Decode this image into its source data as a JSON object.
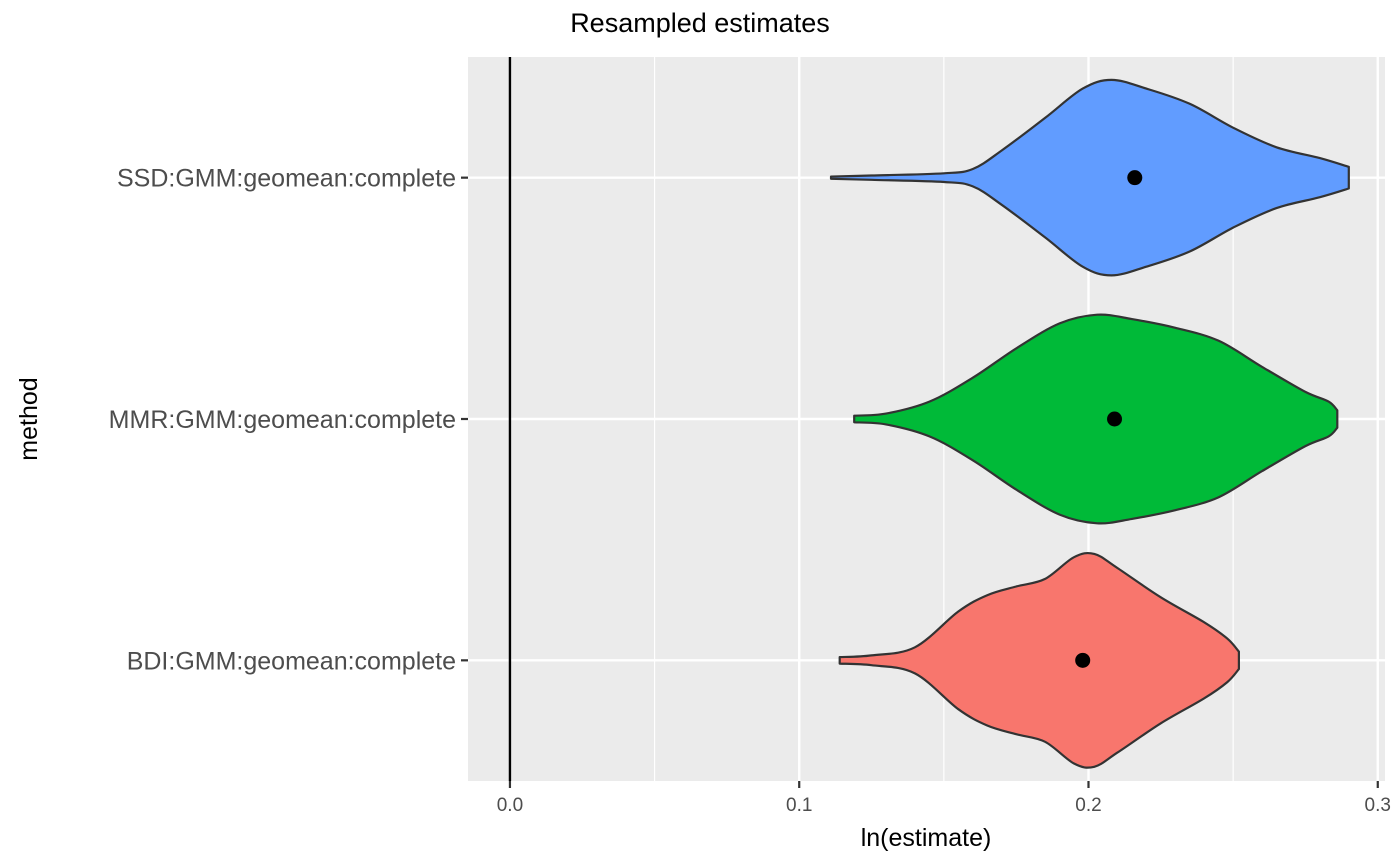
{
  "chart_data": {
    "type": "violin",
    "title": "Resampled estimates",
    "xlabel": "ln(estimate)",
    "ylabel": "method",
    "xlim": [
      -0.0145,
      0.3025
    ],
    "x_ticks": [
      0.0,
      0.1,
      0.2,
      0.3
    ],
    "x_tick_labels": [
      "0.0",
      "0.1",
      "0.2",
      "0.3"
    ],
    "reference_line_x": 0.0,
    "grid": true,
    "background": "#ebebeb",
    "categories": [
      "BDI:GMM:geomean:complete",
      "MMR:GMM:geomean:complete",
      "SSD:GMM:geomean:complete"
    ],
    "series": [
      {
        "category": "BDI:GMM:geomean:complete",
        "color": "#f8766d",
        "point_estimate": 0.198,
        "density": [
          [
            0.114,
            0.03
          ],
          [
            0.125,
            0.045
          ],
          [
            0.14,
            0.12
          ],
          [
            0.155,
            0.45
          ],
          [
            0.165,
            0.6
          ],
          [
            0.175,
            0.68
          ],
          [
            0.185,
            0.75
          ],
          [
            0.195,
            0.95
          ],
          [
            0.202,
            0.98
          ],
          [
            0.21,
            0.85
          ],
          [
            0.225,
            0.58
          ],
          [
            0.24,
            0.35
          ],
          [
            0.248,
            0.2
          ],
          [
            0.252,
            0.08
          ]
        ]
      },
      {
        "category": "MMR:GMM:geomean:complete",
        "color": "#00ba38",
        "point_estimate": 0.209,
        "density": [
          [
            0.119,
            0.03
          ],
          [
            0.13,
            0.05
          ],
          [
            0.145,
            0.16
          ],
          [
            0.16,
            0.38
          ],
          [
            0.175,
            0.65
          ],
          [
            0.19,
            0.88
          ],
          [
            0.203,
            0.96
          ],
          [
            0.215,
            0.92
          ],
          [
            0.23,
            0.84
          ],
          [
            0.245,
            0.72
          ],
          [
            0.26,
            0.48
          ],
          [
            0.275,
            0.25
          ],
          [
            0.283,
            0.16
          ],
          [
            0.286,
            0.08
          ]
        ]
      },
      {
        "category": "SSD:GMM:geomean:complete",
        "color": "#619cff",
        "point_estimate": 0.216,
        "density": [
          [
            0.111,
            0.01
          ],
          [
            0.125,
            0.02
          ],
          [
            0.15,
            0.04
          ],
          [
            0.16,
            0.08
          ],
          [
            0.17,
            0.25
          ],
          [
            0.185,
            0.55
          ],
          [
            0.198,
            0.82
          ],
          [
            0.208,
            0.9
          ],
          [
            0.22,
            0.82
          ],
          [
            0.235,
            0.68
          ],
          [
            0.25,
            0.46
          ],
          [
            0.265,
            0.28
          ],
          [
            0.28,
            0.18
          ],
          [
            0.29,
            0.1
          ]
        ]
      }
    ]
  }
}
